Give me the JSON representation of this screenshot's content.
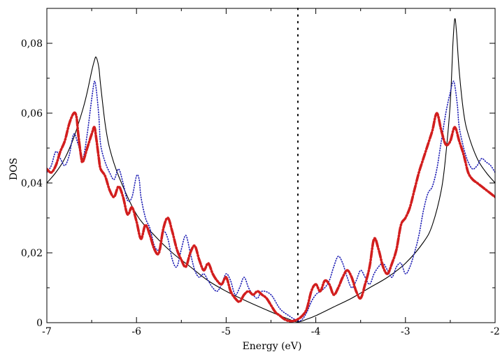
{
  "chart_data": {
    "type": "line",
    "title": "",
    "xlabel": "Energy (eV)",
    "ylabel": "DOS",
    "xlim": [
      -7,
      -2
    ],
    "ylim": [
      0,
      0.09
    ],
    "x_ticks": [
      -7,
      -6,
      -5,
      -4,
      -3,
      -2
    ],
    "x_tick_labels": [
      "-7",
      "-6",
      "-5",
      "-4",
      "-3",
      "-2"
    ],
    "y_ticks": [
      0,
      0.02,
      0.04,
      0.06,
      0.08
    ],
    "y_tick_labels": [
      "0",
      "0,02",
      "0,04",
      "0,06",
      "0,08"
    ],
    "grid": false,
    "legend": "none",
    "fermi_level": -4.2,
    "series": [
      {
        "style": "solid",
        "color": "#000000",
        "x": [
          -7.0,
          -6.9,
          -6.8,
          -6.7,
          -6.6,
          -6.55,
          -6.5,
          -6.47,
          -6.45,
          -6.42,
          -6.4,
          -6.35,
          -6.3,
          -6.2,
          -6.0,
          -5.8,
          -5.6,
          -5.4,
          -5.2,
          -5.0,
          -4.8,
          -4.6,
          -4.4,
          -4.3,
          -4.2,
          -4.1,
          -4.0,
          -3.8,
          -3.6,
          -3.4,
          -3.2,
          -3.0,
          -2.8,
          -2.7,
          -2.6,
          -2.55,
          -2.5,
          -2.47,
          -2.45,
          -2.43,
          -2.4,
          -2.35,
          -2.3,
          -2.2,
          -2.1,
          -2.0
        ],
        "y": [
          0.04,
          0.043,
          0.047,
          0.053,
          0.061,
          0.066,
          0.072,
          0.075,
          0.076,
          0.073,
          0.068,
          0.057,
          0.05,
          0.042,
          0.031,
          0.025,
          0.02,
          0.016,
          0.012,
          0.009,
          0.0065,
          0.0042,
          0.002,
          0.001,
          0.0002,
          0.001,
          0.002,
          0.0045,
          0.007,
          0.01,
          0.013,
          0.017,
          0.023,
          0.028,
          0.038,
          0.048,
          0.063,
          0.08,
          0.087,
          0.083,
          0.072,
          0.06,
          0.054,
          0.047,
          0.043,
          0.04
        ]
      },
      {
        "style": "dotted",
        "color": "#1f1fb4",
        "x": [
          -7.0,
          -6.95,
          -6.9,
          -6.85,
          -6.8,
          -6.75,
          -6.7,
          -6.65,
          -6.6,
          -6.55,
          -6.5,
          -6.47,
          -6.45,
          -6.42,
          -6.4,
          -6.35,
          -6.3,
          -6.25,
          -6.2,
          -6.15,
          -6.1,
          -6.05,
          -6.0,
          -5.97,
          -5.95,
          -5.9,
          -5.85,
          -5.8,
          -5.75,
          -5.7,
          -5.65,
          -5.6,
          -5.55,
          -5.5,
          -5.45,
          -5.4,
          -5.35,
          -5.3,
          -5.25,
          -5.2,
          -5.15,
          -5.1,
          -5.05,
          -5.0,
          -4.95,
          -4.9,
          -4.85,
          -4.8,
          -4.75,
          -4.7,
          -4.65,
          -4.6,
          -4.5,
          -4.4,
          -4.3,
          -4.2,
          -4.15,
          -4.1,
          -4.05,
          -4.0,
          -3.95,
          -3.9,
          -3.85,
          -3.8,
          -3.75,
          -3.7,
          -3.65,
          -3.6,
          -3.55,
          -3.5,
          -3.45,
          -3.4,
          -3.35,
          -3.3,
          -3.25,
          -3.2,
          -3.15,
          -3.1,
          -3.05,
          -3.0,
          -2.95,
          -2.9,
          -2.85,
          -2.8,
          -2.75,
          -2.7,
          -2.65,
          -2.6,
          -2.55,
          -2.5,
          -2.47,
          -2.45,
          -2.42,
          -2.4,
          -2.35,
          -2.3,
          -2.25,
          -2.2,
          -2.15,
          -2.1,
          -2.05,
          -2.0
        ],
        "y": [
          0.043,
          0.045,
          0.049,
          0.047,
          0.045,
          0.048,
          0.054,
          0.051,
          0.047,
          0.054,
          0.064,
          0.069,
          0.067,
          0.059,
          0.051,
          0.046,
          0.043,
          0.041,
          0.044,
          0.04,
          0.035,
          0.036,
          0.042,
          0.041,
          0.036,
          0.03,
          0.027,
          0.022,
          0.021,
          0.026,
          0.024,
          0.018,
          0.016,
          0.021,
          0.025,
          0.02,
          0.015,
          0.013,
          0.014,
          0.012,
          0.01,
          0.009,
          0.011,
          0.014,
          0.012,
          0.008,
          0.01,
          0.013,
          0.01,
          0.008,
          0.007,
          0.009,
          0.008,
          0.004,
          0.002,
          0.0005,
          0.001,
          0.003,
          0.006,
          0.008,
          0.009,
          0.01,
          0.012,
          0.016,
          0.019,
          0.017,
          0.013,
          0.01,
          0.012,
          0.015,
          0.013,
          0.011,
          0.014,
          0.016,
          0.017,
          0.015,
          0.013,
          0.016,
          0.017,
          0.014,
          0.016,
          0.02,
          0.025,
          0.032,
          0.037,
          0.039,
          0.044,
          0.052,
          0.06,
          0.066,
          0.069,
          0.068,
          0.062,
          0.056,
          0.05,
          0.046,
          0.044,
          0.045,
          0.047,
          0.046,
          0.045,
          0.043
        ]
      },
      {
        "style": "dashdot",
        "color": "#d21e1e",
        "x": [
          -7.0,
          -6.95,
          -6.9,
          -6.85,
          -6.8,
          -6.75,
          -6.7,
          -6.67,
          -6.65,
          -6.62,
          -6.6,
          -6.55,
          -6.5,
          -6.47,
          -6.45,
          -6.42,
          -6.4,
          -6.35,
          -6.3,
          -6.25,
          -6.2,
          -6.15,
          -6.1,
          -6.05,
          -6.0,
          -5.95,
          -5.9,
          -5.85,
          -5.8,
          -5.75,
          -5.7,
          -5.65,
          -5.6,
          -5.55,
          -5.5,
          -5.45,
          -5.4,
          -5.35,
          -5.3,
          -5.25,
          -5.2,
          -5.15,
          -5.1,
          -5.05,
          -5.0,
          -4.95,
          -4.9,
          -4.85,
          -4.8,
          -4.75,
          -4.7,
          -4.65,
          -4.6,
          -4.55,
          -4.5,
          -4.45,
          -4.4,
          -4.35,
          -4.3,
          -4.25,
          -4.2,
          -4.15,
          -4.1,
          -4.05,
          -4.0,
          -3.95,
          -3.9,
          -3.85,
          -3.8,
          -3.75,
          -3.7,
          -3.65,
          -3.6,
          -3.55,
          -3.5,
          -3.45,
          -3.4,
          -3.35,
          -3.3,
          -3.25,
          -3.2,
          -3.15,
          -3.1,
          -3.05,
          -3.0,
          -2.95,
          -2.9,
          -2.85,
          -2.8,
          -2.75,
          -2.7,
          -2.65,
          -2.6,
          -2.55,
          -2.5,
          -2.45,
          -2.4,
          -2.35,
          -2.3,
          -2.25,
          -2.2,
          -2.15,
          -2.1,
          -2.05,
          -2.0
        ],
        "y": [
          0.044,
          0.043,
          0.045,
          0.049,
          0.052,
          0.057,
          0.06,
          0.059,
          0.054,
          0.048,
          0.046,
          0.05,
          0.054,
          0.056,
          0.053,
          0.047,
          0.044,
          0.042,
          0.038,
          0.036,
          0.039,
          0.036,
          0.031,
          0.033,
          0.029,
          0.024,
          0.028,
          0.025,
          0.021,
          0.02,
          0.027,
          0.03,
          0.026,
          0.021,
          0.018,
          0.016,
          0.02,
          0.022,
          0.018,
          0.015,
          0.017,
          0.014,
          0.012,
          0.011,
          0.013,
          0.009,
          0.007,
          0.006,
          0.008,
          0.009,
          0.008,
          0.009,
          0.008,
          0.007,
          0.005,
          0.003,
          0.002,
          0.001,
          0.0005,
          0.0005,
          0.001,
          0.002,
          0.004,
          0.009,
          0.011,
          0.009,
          0.012,
          0.011,
          0.008,
          0.01,
          0.013,
          0.015,
          0.013,
          0.009,
          0.007,
          0.011,
          0.016,
          0.024,
          0.021,
          0.016,
          0.014,
          0.017,
          0.021,
          0.028,
          0.03,
          0.033,
          0.038,
          0.043,
          0.047,
          0.051,
          0.055,
          0.06,
          0.055,
          0.051,
          0.052,
          0.056,
          0.052,
          0.048,
          0.043,
          0.041,
          0.04,
          0.039,
          0.038,
          0.037,
          0.036
        ]
      }
    ]
  }
}
